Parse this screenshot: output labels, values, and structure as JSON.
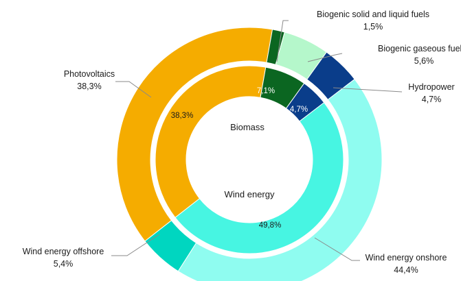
{
  "chart_data": {
    "type": "pie",
    "variant": "double-donut",
    "inner_ring": [
      {
        "name": "Photovoltaics",
        "label": "38,3%",
        "value": 38.3,
        "color": "#f5ac00"
      },
      {
        "name": "Biomass",
        "label": "7,1%",
        "value": 7.1,
        "color": "#0b6621"
      },
      {
        "name": "Hydropower",
        "label": "4,7%",
        "value": 4.7,
        "color": "#0a3d8a"
      },
      {
        "name": "Wind energy",
        "label": "49,8%",
        "value": 49.8,
        "color": "#47f5e2"
      }
    ],
    "outer_ring": [
      {
        "name": "Photovoltaics",
        "label": "38,3%",
        "value": 38.3,
        "color": "#f5ac00"
      },
      {
        "name": "Biogenic solid and liquid fuels",
        "label": "1,5%",
        "value": 1.5,
        "color": "#0b6621"
      },
      {
        "name": "Biogenic gaseous fuels",
        "label": "5,6%",
        "value": 5.6,
        "color": "#b5f7cb"
      },
      {
        "name": "Hydropower",
        "label": "4,7%",
        "value": 4.7,
        "color": "#0a3d8a"
      },
      {
        "name": "Wind energy onshore",
        "label": "44,4%",
        "value": 44.4,
        "color": "#8ffcf0"
      },
      {
        "name": "Wind energy offshore",
        "label": "5,4%",
        "value": 5.4,
        "color": "#00d6c0"
      }
    ],
    "center_labels": {
      "biomass": "Biomass",
      "wind": "Wind energy"
    },
    "outer_labels": {
      "photovoltaics": {
        "name": "Photovoltaics",
        "value": "38,3%"
      },
      "solid": {
        "name": "Biogenic solid and liquid fuels",
        "value": "1,5%"
      },
      "gaseous": {
        "name": "Biogenic gaseous fuels",
        "value": "5,6%"
      },
      "hydro": {
        "name": "Hydropower",
        "value": "4,7%"
      },
      "onshore": {
        "name": "Wind energy onshore",
        "value": "44,4%"
      },
      "offshore": {
        "name": "Wind energy offshore",
        "value": "5,4%"
      }
    }
  }
}
